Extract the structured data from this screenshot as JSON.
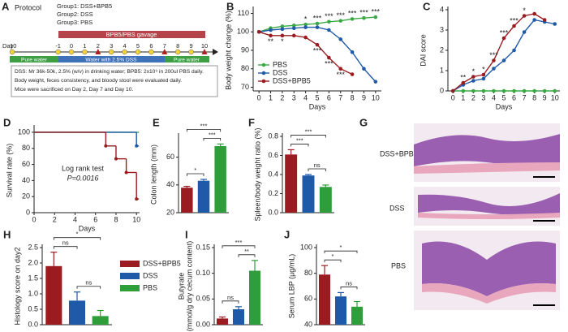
{
  "protocol": {
    "label": "A",
    "title": "Protocol",
    "groups": [
      "Group1: DSS+BPB5",
      "Group2: DSS",
      "Group3: PBS"
    ],
    "gavage": "BPB5/PBS gavage",
    "day_label": "Day",
    "days": [
      -10,
      -1,
      0,
      1,
      2,
      3,
      4,
      5,
      6,
      7,
      8,
      9,
      10
    ],
    "water": [
      "Pure water",
      "Water with 2.5% DSS",
      "Pure water"
    ],
    "notes": [
      "DSS: Mr 36k-50k, 2.5% (w/v) in drinking water; BPB5: 2x10⁹ in 200ul PBS daily.",
      "Body weight, feces consistency, and bloody stool were evaluated  daily.",
      "Mice were sacrificed on Day 2, Day 7 and Day 10."
    ]
  },
  "chart_data": [
    {
      "type": "line",
      "label": "B",
      "ylabel": "Body weight change (%)",
      "xlabel": "Days",
      "x": [
        0,
        1,
        2,
        3,
        4,
        5,
        6,
        7,
        8,
        9,
        10
      ],
      "xlim": [
        -0.5,
        10.5
      ],
      "xticks": [
        0,
        1,
        2,
        3,
        4,
        5,
        6,
        7,
        8,
        9,
        10
      ],
      "ylim": [
        68,
        112
      ],
      "yticks": [
        70,
        80,
        90,
        100,
        110
      ],
      "legend": "lower left",
      "series": [
        {
          "name": "PBS",
          "color": "#3aa845",
          "values": [
            100,
            102,
            103,
            103.5,
            104,
            104.5,
            105.5,
            106,
            107,
            107.5,
            108
          ]
        },
        {
          "name": "DSS",
          "color": "#1e5aa8",
          "values": [
            100,
            101,
            101.5,
            102,
            102.5,
            102.5,
            101,
            96,
            89,
            80,
            73
          ]
        },
        {
          "name": "DSS+BPB5",
          "color": "#9b1c20",
          "values": [
            100,
            98,
            98,
            98,
            97,
            93,
            86,
            80,
            77,
            null,
            null
          ]
        }
      ],
      "annotations_top": [
        {
          "x": 4,
          "text": "*"
        },
        {
          "x": 5,
          "text": "***"
        },
        {
          "x": 6,
          "text": "***"
        },
        {
          "x": 7,
          "text": "***"
        },
        {
          "x": 8,
          "text": "***"
        },
        {
          "x": 9,
          "text": "***"
        },
        {
          "x": 10,
          "text": "***"
        }
      ],
      "annotations_bottom": [
        {
          "x": 1,
          "text": "**"
        },
        {
          "x": 2,
          "text": "*"
        },
        {
          "x": 5,
          "text": "***"
        },
        {
          "x": 6,
          "text": "***"
        },
        {
          "x": 7,
          "text": "***"
        }
      ]
    },
    {
      "type": "line",
      "label": "C",
      "ylabel": "DAI score",
      "xlabel": "Days",
      "x": [
        0,
        1,
        2,
        3,
        4,
        5,
        6,
        7,
        8,
        9,
        10
      ],
      "xlim": [
        -0.5,
        10.5
      ],
      "xticks": [
        0,
        1,
        2,
        3,
        4,
        5,
        6,
        7,
        8,
        9,
        10
      ],
      "ylim": [
        0,
        4
      ],
      "yticks": [
        0,
        1,
        2,
        3,
        4
      ],
      "series": [
        {
          "name": "PBS",
          "color": "#3aa845",
          "values": [
            0,
            0,
            0,
            0,
            0,
            0,
            0,
            0,
            0,
            0,
            0
          ]
        },
        {
          "name": "DSS",
          "color": "#1e5aa8",
          "values": [
            0,
            0.3,
            0.5,
            0.6,
            1.1,
            1.5,
            2.0,
            2.9,
            3.5,
            3.4,
            3.3
          ]
        },
        {
          "name": "DSS+BPB5",
          "color": "#9b1c20",
          "values": [
            0,
            0.4,
            0.7,
            0.8,
            1.5,
            2.6,
            3.2,
            3.7,
            3.8,
            3.5,
            null
          ]
        }
      ],
      "annotations_top": [
        {
          "x": 1,
          "text": "**"
        },
        {
          "x": 2,
          "text": "*"
        },
        {
          "x": 3,
          "text": "*"
        },
        {
          "x": 4,
          "text": "***"
        },
        {
          "x": 5,
          "text": "***"
        },
        {
          "x": 6,
          "text": "***"
        },
        {
          "x": 7,
          "text": "*"
        }
      ]
    },
    {
      "type": "step",
      "label": "D",
      "ylabel": "Survival rate (%)",
      "xlabel": "Days",
      "x": [
        0,
        1,
        2,
        3,
        4,
        5,
        6,
        7,
        8,
        9,
        10
      ],
      "xlim": [
        0,
        10.3
      ],
      "xticks": [
        0,
        2,
        4,
        6,
        8,
        10
      ],
      "ylim": [
        0,
        105
      ],
      "yticks": [
        0,
        20,
        40,
        60,
        80,
        100
      ],
      "series": [
        {
          "name": "PBS",
          "color": "#3aa845",
          "values": [
            100,
            100,
            100,
            100,
            100,
            100,
            100,
            100,
            100,
            100,
            100
          ]
        },
        {
          "name": "DSS",
          "color": "#1e5aa8",
          "values": [
            100,
            100,
            100,
            100,
            100,
            100,
            100,
            100,
            100,
            100,
            83
          ]
        },
        {
          "name": "DSS+BPB5",
          "color": "#9b1c20",
          "values": [
            100,
            100,
            100,
            100,
            100,
            100,
            100,
            83,
            67,
            50,
            17
          ]
        }
      ],
      "annotations": [
        "Log rank test",
        "P=0.0016"
      ]
    },
    {
      "type": "bar",
      "label": "E",
      "ylabel": "Colon length (mm)",
      "ylim": [
        20,
        75
      ],
      "yticks": [
        20,
        40,
        60
      ],
      "values": [
        38,
        43,
        68
      ],
      "errors": [
        1,
        1,
        1.5
      ],
      "colors": [
        "#9b1c20",
        "#1e5aa8",
        "#2e9e3a"
      ],
      "significance": [
        "*",
        "***",
        "***"
      ]
    },
    {
      "type": "bar",
      "label": "F",
      "ylabel": "Spleen/body weight ratio (%)",
      "ylim": [
        0,
        0.8
      ],
      "yticks": [
        {
          "value": 0,
          "label": "0.0"
        },
        0.2,
        0.4,
        0.6,
        0.8
      ],
      "values": [
        0.61,
        0.39,
        0.27
      ],
      "errors": [
        0.05,
        0.01,
        0.02
      ],
      "colors": [
        "#9b1c20",
        "#1e5aa8",
        "#2e9e3a"
      ],
      "significance": [
        "***",
        "ns",
        "***"
      ]
    },
    {
      "type": "bar",
      "label": "H",
      "ylabel": "Histology score on day2",
      "ylim": [
        0,
        2.5
      ],
      "yticks": [
        {
          "value": 0,
          "label": "0.0"
        },
        0.5,
        {
          "value": 1,
          "label": "1.0"
        },
        1.5,
        {
          "value": 2,
          "label": "2.0"
        },
        2.5
      ],
      "values": [
        1.9,
        0.78,
        0.28
      ],
      "errors": [
        0.45,
        0.28,
        0.18
      ],
      "colors": [
        "#9b1c20",
        "#1e5aa8",
        "#2e9e3a"
      ],
      "significance": [
        "ns",
        "ns",
        "*"
      ],
      "legend": [
        "DSS+BPB5",
        "DSS",
        "PBS"
      ]
    },
    {
      "type": "bar",
      "label": "I",
      "ylabel": "Butyrate",
      "ylabel2": "(mmol/g dry cecum content)",
      "ylim": [
        0,
        0.15
      ],
      "yticks": [
        {
          "value": 0,
          "label": "0.00"
        },
        0.05,
        {
          "value": 0.1,
          "label": "0.10"
        },
        0.15
      ],
      "values": [
        0.012,
        0.03,
        0.105
      ],
      "errors": [
        0.003,
        0.005,
        0.02
      ],
      "colors": [
        "#9b1c20",
        "#1e5aa8",
        "#2e9e3a"
      ],
      "significance": [
        "ns",
        "**",
        "***"
      ]
    },
    {
      "type": "bar",
      "label": "J",
      "ylabel": "Serum LBP (µg/mL)",
      "ylim": [
        40,
        100
      ],
      "yticks": [
        40,
        60,
        80,
        100
      ],
      "values": [
        79,
        62,
        54
      ],
      "errors": [
        7,
        3,
        4
      ],
      "colors": [
        "#9b1c20",
        "#1e5aa8",
        "#2e9e3a"
      ],
      "significance": [
        "*",
        "ns",
        "*"
      ]
    }
  ],
  "histology": {
    "label": "G",
    "groups": [
      "DSS+BPB5",
      "DSS",
      "PBS"
    ]
  }
}
